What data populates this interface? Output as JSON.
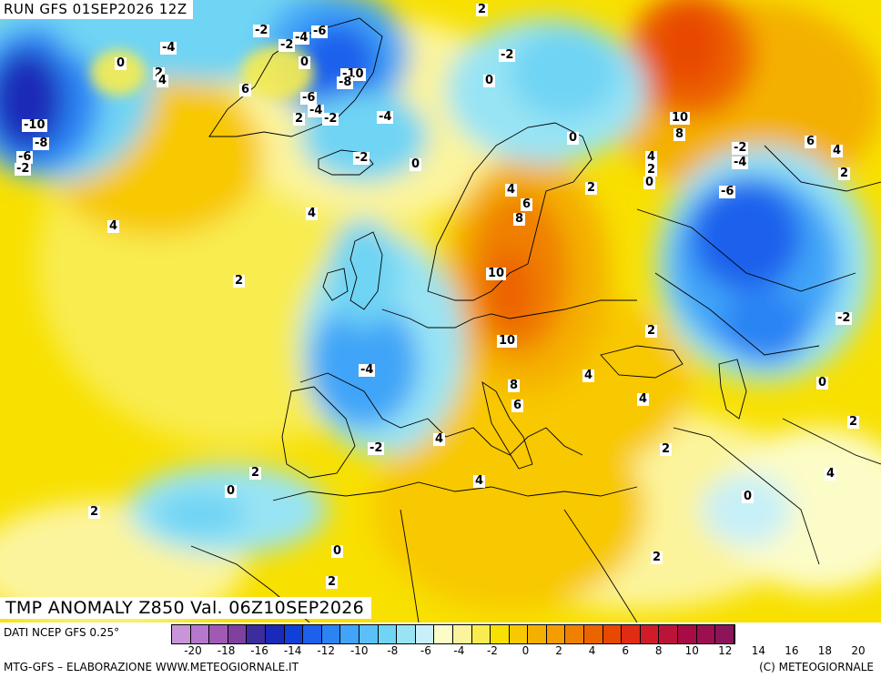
{
  "header": {
    "run_label": "RUN GFS 01SEP2026 12Z"
  },
  "product": {
    "title": "TMP ANOMALY Z850 Val. 06Z10SEP2026"
  },
  "contour_labels": [
    {
      "text": "2"
    },
    {
      "text": "-4"
    },
    {
      "text": "-2"
    },
    {
      "text": "-4"
    },
    {
      "text": "-6"
    },
    {
      "text": "0"
    },
    {
      "text": "2"
    },
    {
      "text": "4"
    },
    {
      "text": "-2"
    },
    {
      "text": "0"
    },
    {
      "text": "6"
    },
    {
      "text": "-10"
    },
    {
      "text": "-8"
    },
    {
      "text": "-6"
    },
    {
      "text": "-4"
    },
    {
      "text": "-2"
    },
    {
      "text": "2"
    },
    {
      "text": "-2"
    },
    {
      "text": "-10"
    },
    {
      "text": "-8"
    },
    {
      "text": "-6"
    },
    {
      "text": "-2"
    },
    {
      "text": "-4"
    },
    {
      "text": "0"
    },
    {
      "text": "0"
    },
    {
      "text": "4"
    },
    {
      "text": "4"
    },
    {
      "text": "-2"
    },
    {
      "text": "2"
    },
    {
      "text": "10"
    },
    {
      "text": "8"
    },
    {
      "text": "0"
    },
    {
      "text": "4"
    },
    {
      "text": "2"
    },
    {
      "text": "0"
    },
    {
      "text": "-2"
    },
    {
      "text": "-4"
    },
    {
      "text": "-6"
    },
    {
      "text": "6"
    },
    {
      "text": "4"
    },
    {
      "text": "2"
    },
    {
      "text": "4"
    },
    {
      "text": "8"
    },
    {
      "text": "6"
    },
    {
      "text": "2"
    },
    {
      "text": "10"
    },
    {
      "text": "10"
    },
    {
      "text": "2"
    },
    {
      "text": "-4"
    },
    {
      "text": "8"
    },
    {
      "text": "6"
    },
    {
      "text": "4"
    },
    {
      "text": "4"
    },
    {
      "text": "-2"
    },
    {
      "text": "0"
    },
    {
      "text": "4"
    },
    {
      "text": "-2"
    },
    {
      "text": "2"
    },
    {
      "text": "2"
    },
    {
      "text": "0"
    },
    {
      "text": "2"
    },
    {
      "text": "4"
    },
    {
      "text": "0"
    },
    {
      "text": "4"
    },
    {
      "text": "2"
    },
    {
      "text": "0"
    },
    {
      "text": "2"
    },
    {
      "text": "2"
    }
  ],
  "legend": {
    "data_source": "DATI NCEP GFS 0.25°",
    "colors": [
      "#c896d8",
      "#b478cc",
      "#a05ab4",
      "#8040a0",
      "#3c2c9c",
      "#1a2ab8",
      "#1040d8",
      "#1c60ec",
      "#2c84f4",
      "#40a4f8",
      "#5cc0f8",
      "#70d4f4",
      "#98e4f4",
      "#c8f0f8",
      "#fcfcc8",
      "#fcf49c",
      "#f8ec50",
      "#f8e000",
      "#f8c800",
      "#f4b000",
      "#f49c00",
      "#f08000",
      "#ec6400",
      "#e84800",
      "#e02c14",
      "#d01c28",
      "#bc1438",
      "#a80c44",
      "#9c1050",
      "#8c1458"
    ],
    "ticks": [
      "-20",
      "-18",
      "-16",
      "-14",
      "-12",
      "-10",
      "-8",
      "-6",
      "-4",
      "-2",
      "0",
      "2",
      "4",
      "6",
      "8",
      "10",
      "12",
      "14",
      "16",
      "18",
      "20"
    ],
    "model_credit": "MTG-GFS – ELABORAZIONE WWW.METEOGIORNALE.IT",
    "copyright": "(C) METEOGIORNALE"
  }
}
